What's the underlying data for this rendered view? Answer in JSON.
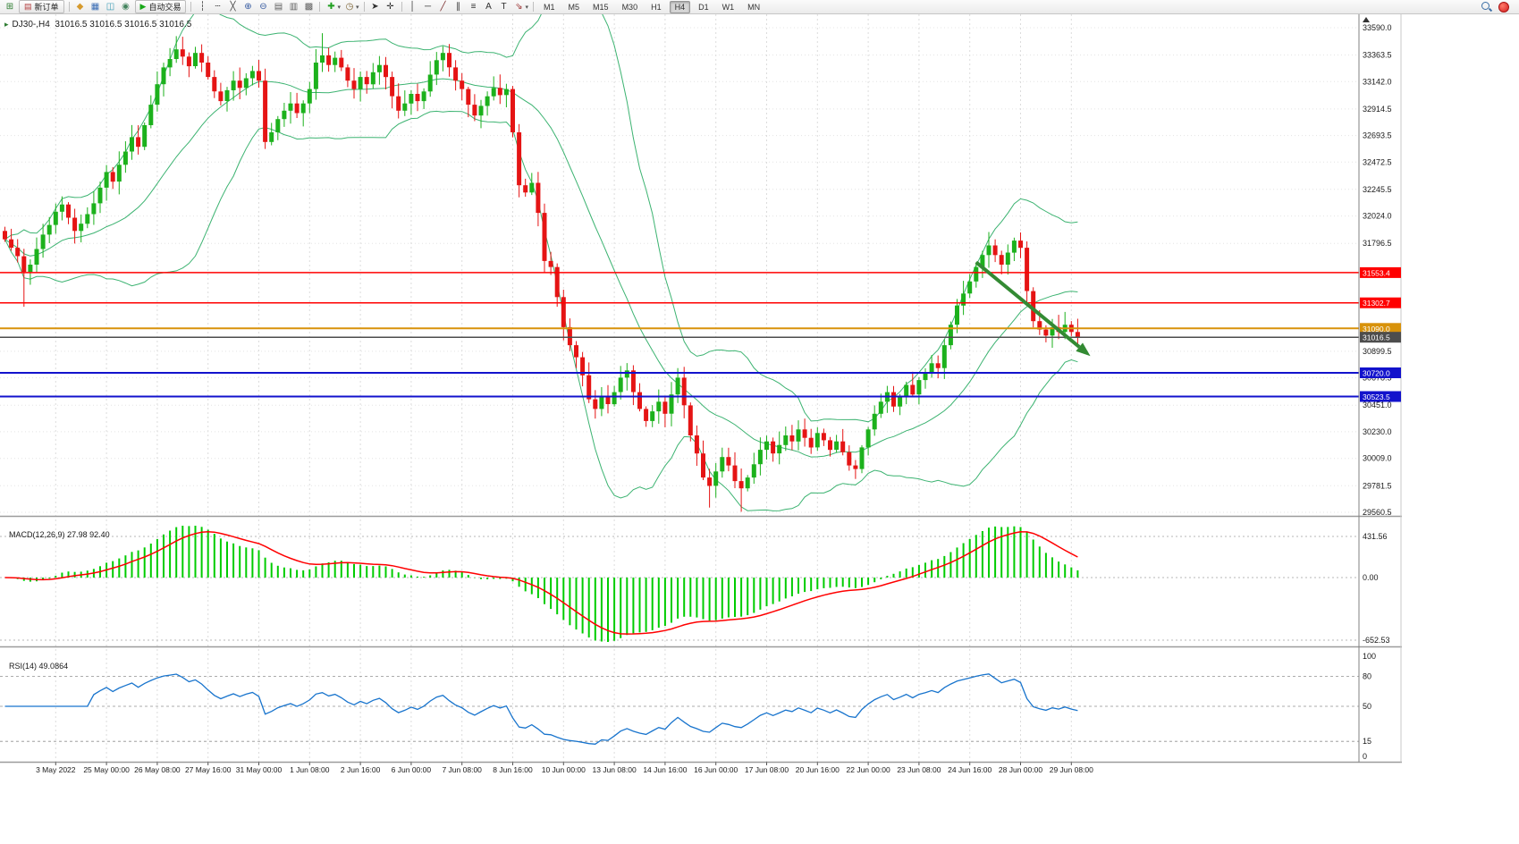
{
  "toolbar": {
    "items": [
      {
        "type": "icon",
        "name": "new-chart-icon",
        "glyph": "⊞",
        "color": "#2e7d32"
      },
      {
        "type": "button",
        "name": "new-order-button",
        "glyph": "▤",
        "glyph_color": "#b23b3b",
        "label": "新订单"
      },
      {
        "type": "sep"
      },
      {
        "type": "icon",
        "name": "profiles-icon",
        "glyph": "◆",
        "color": "#d69a2d"
      },
      {
        "type": "icon",
        "name": "market-watch-icon",
        "glyph": "▦",
        "color": "#3b6db5"
      },
      {
        "type": "icon",
        "name": "data-window-icon",
        "glyph": "◫",
        "color": "#3b9bb5"
      },
      {
        "type": "icon",
        "name": "navigator-icon",
        "glyph": "◉",
        "color": "#44845e"
      },
      {
        "type": "button",
        "name": "auto-trading-button",
        "glyph": "▶",
        "glyph_color": "#18a818",
        "label": "自动交易"
      },
      {
        "type": "sep"
      },
      {
        "type": "icon",
        "name": "vertical-line-icon",
        "glyph": "┆",
        "color": "#404040"
      },
      {
        "type": "icon",
        "name": "horizontal-line-icon",
        "glyph": "┄",
        "color": "#404040"
      },
      {
        "type": "icon",
        "name": "cross-lines-icon",
        "glyph": "╳",
        "color": "#404040"
      },
      {
        "type": "icon",
        "name": "zoom-in-icon",
        "glyph": "⊕",
        "color": "#33589f"
      },
      {
        "type": "icon",
        "name": "zoom-out-icon",
        "glyph": "⊖",
        "color": "#33589f"
      },
      {
        "type": "icon",
        "name": "tile-horizontal-icon",
        "glyph": "▤",
        "color": "#606060"
      },
      {
        "type": "icon",
        "name": "tile-vertical-icon",
        "glyph": "▥",
        "color": "#606060"
      },
      {
        "type": "icon",
        "name": "cascade-windows-icon",
        "glyph": "▩",
        "color": "#606060"
      },
      {
        "type": "sep"
      },
      {
        "type": "icon",
        "name": "add-indicator-icon",
        "glyph": "✚",
        "color": "#1f9f1f",
        "dd": true
      },
      {
        "type": "icon",
        "name": "period-icon",
        "glyph": "◷",
        "color": "#7a6030",
        "dd": true
      },
      {
        "type": "sep"
      },
      {
        "type": "icon",
        "name": "cursor-icon",
        "glyph": "➤",
        "color": "#303030"
      },
      {
        "type": "icon",
        "name": "crosshair-icon",
        "glyph": "✛",
        "color": "#303030"
      },
      {
        "type": "sep"
      },
      {
        "type": "icon",
        "name": "draw-vline-icon",
        "glyph": "│",
        "color": "#303030"
      },
      {
        "type": "icon",
        "name": "draw-hline-icon",
        "glyph": "─",
        "color": "#303030"
      },
      {
        "type": "icon",
        "name": "draw-trendline-icon",
        "glyph": "╱",
        "color": "#7a2d2d"
      },
      {
        "type": "icon",
        "name": "draw-channel-icon",
        "glyph": "∥",
        "color": "#303030"
      },
      {
        "type": "icon",
        "name": "fibonacci-icon",
        "glyph": "≡",
        "color": "#303030"
      },
      {
        "type": "icon",
        "name": "text-icon",
        "glyph": "A",
        "color": "#303030"
      },
      {
        "type": "icon",
        "name": "text-label-icon",
        "glyph": "T",
        "color": "#303030"
      },
      {
        "type": "icon",
        "name": "arrows-icon",
        "glyph": "⇘",
        "color": "#9a3030",
        "dd": true
      },
      {
        "type": "sep"
      }
    ],
    "timeframes": {
      "items": [
        "M1",
        "M5",
        "M15",
        "M30",
        "H1",
        "H4",
        "D1",
        "W1",
        "MN"
      ],
      "active": "H4"
    }
  },
  "chart_data": {
    "type": "candlestick",
    "symbol": "DJ30-",
    "period": "H4",
    "ohlc_header": "DJ30-,H4  31016.5 31016.5 31016.5 31016.5",
    "price_axis": {
      "min": 29560.5,
      "max": 33590.0,
      "labels": [
        "33590.0",
        "33363.5",
        "33142.0",
        "32914.5",
        "32693.5",
        "32472.5",
        "32245.5",
        "32024.0",
        "31796.5",
        "30899.5",
        "30678.5",
        "30451.0",
        "30230.0",
        "30009.0",
        "29781.5",
        "29560.5"
      ]
    },
    "time_labels": [
      "3 May 2022",
      "25 May 00:00",
      "26 May 08:00",
      "27 May 16:00",
      "31 May 00:00",
      "1 Jun 08:00",
      "2 Jun 16:00",
      "6 Jun 00:00",
      "7 Jun 08:00",
      "8 Jun 16:00",
      "10 Jun 00:00",
      "13 Jun 08:00",
      "14 Jun 16:00",
      "16 Jun 00:00",
      "17 Jun 08:00",
      "20 Jun 16:00",
      "22 Jun 00:00",
      "23 Jun 08:00",
      "24 Jun 16:00",
      "28 Jun 00:00",
      "29 Jun 08:00"
    ],
    "candles": {
      "first_open": 31900,
      "up_color": "#1cb11c",
      "down_color": "#e51414",
      "closes": [
        31830,
        31760,
        31690,
        31560,
        31620,
        31750,
        31870,
        31950,
        32060,
        32120,
        32010,
        31900,
        31960,
        32040,
        32130,
        32260,
        32390,
        32310,
        32450,
        32560,
        32680,
        32600,
        32780,
        32950,
        33120,
        33260,
        33330,
        33410,
        33350,
        33270,
        33380,
        33300,
        33180,
        33060,
        32980,
        33070,
        33150,
        33090,
        33170,
        33230,
        33150,
        32640,
        32720,
        32830,
        32900,
        32960,
        32880,
        32960,
        33080,
        33300,
        33360,
        33280,
        33340,
        33260,
        33150,
        33080,
        33180,
        33120,
        33220,
        33280,
        33180,
        33020,
        32900,
        32960,
        33040,
        32980,
        33060,
        33200,
        33320,
        33380,
        33260,
        33150,
        33080,
        32950,
        32860,
        32940,
        33020,
        33090,
        33030,
        33080,
        32720,
        32280,
        32220,
        32300,
        32050,
        31650,
        31600,
        31350,
        31100,
        30950,
        30850,
        30700,
        30500,
        30420,
        30520,
        30460,
        30560,
        30680,
        30740,
        30560,
        30420,
        30320,
        30400,
        30480,
        30380,
        30540,
        30680,
        30450,
        30200,
        30050,
        29850,
        29780,
        29900,
        30020,
        29950,
        29820,
        29760,
        29850,
        29960,
        30080,
        30150,
        30050,
        30120,
        30200,
        30150,
        30250,
        30180,
        30100,
        30220,
        30160,
        30080,
        30150,
        30060,
        29950,
        29920,
        30100,
        30250,
        30380,
        30480,
        30560,
        30440,
        30520,
        30620,
        30540,
        30660,
        30720,
        30800,
        30760,
        30950,
        31120,
        31280,
        31380,
        31480,
        31600,
        31700,
        31780,
        31700,
        31620,
        31720,
        31820,
        31760,
        31400,
        31150,
        31080,
        31030,
        31100,
        31060,
        31120,
        31060,
        31016.5
      ],
      "high_overrides": {
        "27": 33520,
        "50": 33545
      },
      "low_overrides": {
        "3": 31270,
        "111": 29600,
        "116": 29565
      }
    },
    "bollinger": {
      "period": 20,
      "deviation": 2,
      "color": "#3cb371"
    },
    "hlines": [
      {
        "value": 31553.4,
        "label": "31553.4",
        "color": "#ff0000",
        "width": 1.5
      },
      {
        "value": 31302.7,
        "label": "31302.7",
        "color": "#ff0000",
        "width": 1.5
      },
      {
        "value": 31090.0,
        "label": "31090.0",
        "color": "#d8920a",
        "width": 2
      },
      {
        "value": 31016.5,
        "label": "31016.5",
        "color": "#4d4d4d",
        "width": 1.5
      },
      {
        "value": 30720.0,
        "label": "30720.0",
        "color": "#1212cc",
        "width": 2
      },
      {
        "value": 30523.5,
        "label": "30523.5",
        "color": "#1212cc",
        "width": 2
      }
    ],
    "arrow": {
      "from_index": 153,
      "from_price": 31640,
      "to_index": 171,
      "to_price": 30860,
      "color": "#338a33"
    },
    "macd": {
      "name": "MACD(12,26,9)",
      "value_main": "27.98",
      "value_signal": "92.40",
      "axis_labels": [
        "431.56",
        "0.00",
        "-652.53"
      ],
      "histogram_color": "#00cc00",
      "signal_color": "#ff0000"
    },
    "rsi": {
      "name": "RSI(14)",
      "value": "49.0864",
      "axis_labels": [
        "100",
        "80",
        "50",
        "15",
        "0"
      ],
      "levels": [
        80,
        50,
        15
      ],
      "line_color": "#1874cd"
    }
  }
}
